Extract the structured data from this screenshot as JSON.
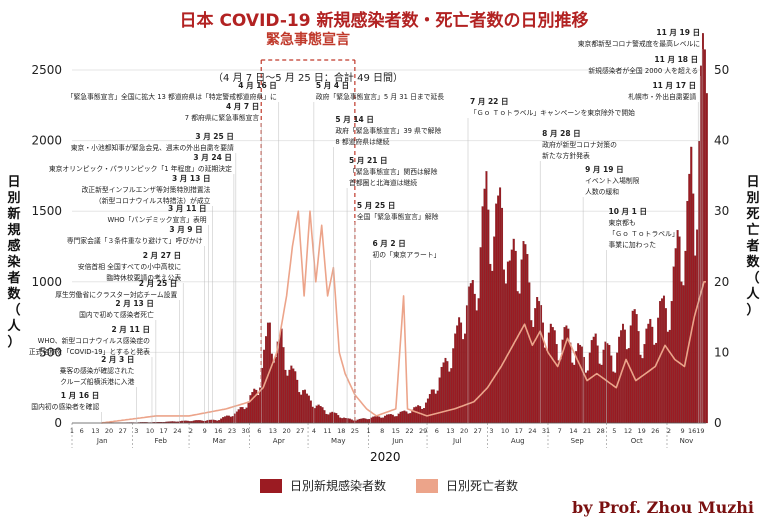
{
  "title": "日本 COVID-19 新規感染者数・死亡者数の日別推移",
  "credit": "by Prof. Zhou Muzhi",
  "colors": {
    "cases": "#9b1b22",
    "deaths": "#eca48a",
    "title": "#b22222",
    "emergency": "#c0392b"
  },
  "chart_data": {
    "type": "bar",
    "title": "日本 COVID-19 新規感染者数・死亡者数の日別推移",
    "xlabel": "2020",
    "ylabel": "日別新規感染者数（人）",
    "y2label": "日別死亡者数（人）",
    "ylim": [
      0,
      2500
    ],
    "y2lim": [
      0,
      50
    ],
    "yticks": [
      0,
      500,
      1000,
      1500,
      2000,
      2500
    ],
    "y2ticks": [
      0,
      10,
      20,
      30,
      40,
      50
    ],
    "grid": true,
    "legend_position": "bottom",
    "months": [
      "Jan",
      "Feb",
      "Mar",
      "Apr",
      "May",
      "Jun",
      "Jul",
      "Aug",
      "Sep",
      "Oct",
      "Nov"
    ],
    "x_tick_labels": [
      "1",
      "6",
      "13",
      "20",
      "27",
      "3",
      "10",
      "17",
      "24",
      "2",
      "9",
      "16",
      "23",
      "30",
      "6",
      "13",
      "20",
      "27",
      "4",
      "11",
      "18",
      "25",
      "1",
      "8",
      "15",
      "22",
      "29",
      "6",
      "13",
      "20",
      "27",
      "3",
      "10",
      "17",
      "24",
      "31",
      "7",
      "14",
      "21",
      "28",
      "5",
      "12",
      "19",
      "26",
      "2",
      "9",
      "1619"
    ],
    "series": [
      {
        "name": "日別新規感染者数",
        "axis": "left",
        "kind": "bar",
        "points": [
          [
            "01-16",
            1
          ],
          [
            "02-13",
            5
          ],
          [
            "03-01",
            15
          ],
          [
            "03-15",
            20
          ],
          [
            "03-25",
            70
          ],
          [
            "03-31",
            150
          ],
          [
            "04-05",
            250
          ],
          [
            "04-08",
            450
          ],
          [
            "04-11",
            700
          ],
          [
            "04-14",
            460
          ],
          [
            "04-17",
            580
          ],
          [
            "04-21",
            370
          ],
          [
            "04-25",
            300
          ],
          [
            "04-30",
            180
          ],
          [
            "05-05",
            120
          ],
          [
            "05-10",
            80
          ],
          [
            "05-15",
            60
          ],
          [
            "05-20",
            30
          ],
          [
            "05-25",
            20
          ],
          [
            "06-01",
            35
          ],
          [
            "06-15",
            60
          ],
          [
            "06-25",
            100
          ],
          [
            "07-01",
            150
          ],
          [
            "07-10",
            400
          ],
          [
            "07-15",
            550
          ],
          [
            "07-20",
            800
          ],
          [
            "07-25",
            900
          ],
          [
            "07-31",
            1550
          ],
          [
            "08-04",
            1300
          ],
          [
            "08-08",
            1500
          ],
          [
            "08-12",
            1000
          ],
          [
            "08-15",
            1200
          ],
          [
            "08-20",
            1100
          ],
          [
            "08-25",
            800
          ],
          [
            "08-31",
            650
          ],
          [
            "09-05",
            550
          ],
          [
            "09-10",
            600
          ],
          [
            "09-15",
            500
          ],
          [
            "09-20",
            450
          ],
          [
            "09-25",
            550
          ],
          [
            "09-30",
            500
          ],
          [
            "10-05",
            450
          ],
          [
            "10-10",
            650
          ],
          [
            "10-15",
            700
          ],
          [
            "10-20",
            550
          ],
          [
            "10-25",
            700
          ],
          [
            "10-31",
            800
          ],
          [
            "11-03",
            850
          ],
          [
            "11-07",
            1300
          ],
          [
            "11-10",
            1200
          ],
          [
            "11-13",
            1700
          ],
          [
            "11-15",
            1500
          ],
          [
            "11-18",
            2200
          ],
          [
            "11-19",
            2400
          ],
          [
            "11-20",
            2300
          ]
        ]
      },
      {
        "name": "日別死亡者数",
        "axis": "right",
        "kind": "line",
        "points": [
          [
            "01-16",
            0
          ],
          [
            "02-13",
            1
          ],
          [
            "03-01",
            1
          ],
          [
            "03-20",
            2
          ],
          [
            "04-01",
            3
          ],
          [
            "04-08",
            5
          ],
          [
            "04-15",
            10
          ],
          [
            "04-20",
            18
          ],
          [
            "04-23",
            25
          ],
          [
            "04-26",
            30
          ],
          [
            "04-29",
            18
          ],
          [
            "05-02",
            30
          ],
          [
            "05-05",
            20
          ],
          [
            "05-08",
            28
          ],
          [
            "05-11",
            18
          ],
          [
            "05-14",
            22
          ],
          [
            "05-17",
            10
          ],
          [
            "05-20",
            7
          ],
          [
            "05-25",
            4
          ],
          [
            "05-31",
            2
          ],
          [
            "06-05",
            1
          ],
          [
            "06-15",
            2
          ],
          [
            "06-19",
            18
          ],
          [
            "06-21",
            2
          ],
          [
            "07-01",
            1
          ],
          [
            "07-15",
            2
          ],
          [
            "07-25",
            3
          ],
          [
            "08-01",
            5
          ],
          [
            "08-08",
            8
          ],
          [
            "08-12",
            10
          ],
          [
            "08-16",
            12
          ],
          [
            "08-20",
            14
          ],
          [
            "08-24",
            11
          ],
          [
            "08-28",
            13
          ],
          [
            "09-01",
            10
          ],
          [
            "09-06",
            8
          ],
          [
            "09-11",
            12
          ],
          [
            "09-16",
            9
          ],
          [
            "09-21",
            6
          ],
          [
            "09-26",
            7
          ],
          [
            "10-01",
            6
          ],
          [
            "10-06",
            5
          ],
          [
            "10-11",
            9
          ],
          [
            "10-16",
            6
          ],
          [
            "10-21",
            7
          ],
          [
            "10-26",
            8
          ],
          [
            "10-31",
            11
          ],
          [
            "11-05",
            9
          ],
          [
            "11-10",
            8
          ],
          [
            "11-15",
            15
          ],
          [
            "11-20",
            20
          ]
        ]
      }
    ],
    "emergency": {
      "label": "緊急事態宣言",
      "sublabel": "（4 月 7 日〜5 月 25 日：合計 49 日間）",
      "start": "04-07",
      "end": "05-25"
    },
    "annotations": [
      {
        "date": "01-16",
        "side": "left",
        "lines": [
          "1 月 16 日",
          "国内初の感染者を確認"
        ]
      },
      {
        "date": "02-03",
        "side": "left",
        "lines": [
          "2 月 3 日",
          "乗客の感染が確認された",
          "クルーズ船横浜港に入港"
        ]
      },
      {
        "date": "02-11",
        "side": "left",
        "lines": [
          "2 月 11 日",
          "WHO、新型コロナウイルス感染症の",
          "正式名称を「COVID-19」とすると発表"
        ]
      },
      {
        "date": "02-13",
        "side": "left",
        "lines": [
          "2 月 13 日",
          "国内で初めて感染者死亡"
        ]
      },
      {
        "date": "02-25",
        "side": "left",
        "lines": [
          "2 月 25 日",
          "厚生労働省にクラスター対応チーム設置"
        ]
      },
      {
        "date": "02-27",
        "side": "left",
        "lines": [
          "2 月 27 日",
          "安倍首相 全国すべての小中高校に",
          "臨時休校要請の考え公表"
        ]
      },
      {
        "date": "03-09",
        "side": "left",
        "lines": [
          "3 月 9 日",
          "専門家会議「３条件重なり避けて」呼びかけ"
        ]
      },
      {
        "date": "03-11",
        "side": "left",
        "lines": [
          "3 月 11 日",
          "WHO「パンデミック宣言」表明"
        ]
      },
      {
        "date": "03-13",
        "side": "left",
        "lines": [
          "3 月 13 日",
          "改正新型インフルエンザ等対策特別措置法",
          "（新型コロナウイルス特措法）が成立"
        ]
      },
      {
        "date": "03-24",
        "side": "left",
        "lines": [
          "3 月 24 日",
          "東京オリンピック・パラリンピック「1 年程度」の延期決定"
        ]
      },
      {
        "date": "03-25",
        "side": "left",
        "lines": [
          "3 月 25 日",
          "東京・小池都知事が緊急会見、週末の外出自粛を要請"
        ]
      },
      {
        "date": "04-07",
        "side": "left",
        "lines": [
          "4 月 7 日",
          "7 都府県に緊急事態宣言"
        ]
      },
      {
        "date": "04-16",
        "side": "left",
        "lines": [
          "4 月 16 日",
          "「緊急事態宣言」全国に拡大 13 都道府県は「特定警戒都道府県」に"
        ]
      },
      {
        "date": "05-04",
        "side": "right",
        "lines": [
          "5 月 4 日",
          "政府「緊急事態宣言」5 月 31 日まで延長"
        ]
      },
      {
        "date": "05-14",
        "side": "right",
        "lines": [
          "5 月 14 日",
          "政府「緊急事態宣言」39 県で解除",
          "8 都道府県は継続"
        ]
      },
      {
        "date": "05-21",
        "side": "right",
        "lines": [
          "5 月 21 日",
          "「緊急事態宣言」関西は解除",
          "首都圏と北海道は継続"
        ]
      },
      {
        "date": "05-25",
        "side": "right",
        "lines": [
          "5 月 25 日",
          "全国「緊急事態宣言」解除"
        ]
      },
      {
        "date": "06-02",
        "side": "right",
        "lines": [
          "6 月 2 日",
          "初の「東京アラート」"
        ]
      },
      {
        "date": "07-22",
        "side": "right",
        "lines": [
          "7 月 22 日",
          "「Ｇｏ Ｔｏトラベル」キャンペーンを東京除外で開始"
        ]
      },
      {
        "date": "08-28",
        "side": "right",
        "lines": [
          "8 月 28 日",
          "政府が新型コロナ対策の",
          "新たな方針発表"
        ]
      },
      {
        "date": "09-19",
        "side": "right",
        "lines": [
          "9 月 19 日",
          "イベント入場制限",
          "人数の緩和"
        ]
      },
      {
        "date": "10-01",
        "side": "right",
        "lines": [
          "10 月 1 日",
          "東京都も",
          "「Ｇｏ Ｔｏトラベル」",
          "事業に加わった"
        ]
      },
      {
        "date": "11-17",
        "side": "left",
        "lines": [
          "11 月 17 日",
          "札幌市・外出自粛要請"
        ]
      },
      {
        "date": "11-18",
        "side": "left",
        "lines": [
          "11 月 18 日",
          "新規感染者が全国 2000 人を超える"
        ]
      },
      {
        "date": "11-19",
        "side": "left",
        "lines": [
          "11 月 19 日",
          "東京都新型コロナ警戒度を最高レベルに"
        ]
      }
    ]
  }
}
